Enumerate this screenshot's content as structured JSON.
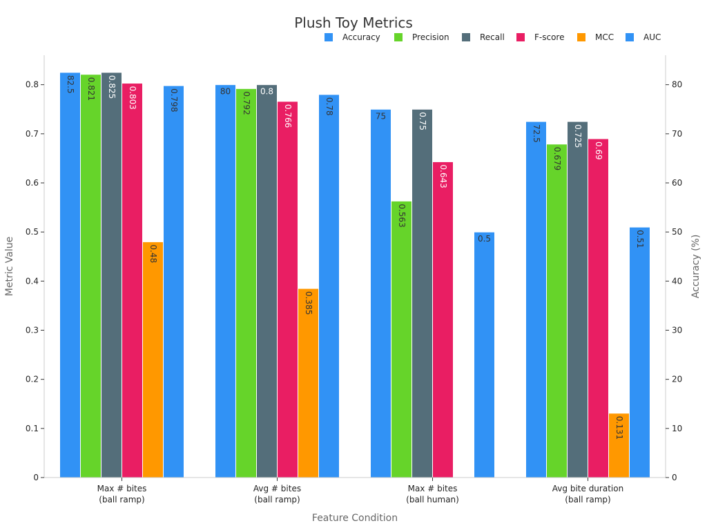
{
  "chart_data": {
    "type": "bar",
    "title": "Plush Toy Metrics",
    "xlabel": "Feature Condition",
    "ylabel": "Metric Value",
    "y2label": "Accuracy (%)",
    "categories": [
      [
        "Max # bites",
        "(ball ramp)"
      ],
      [
        "Avg # bites",
        "(ball ramp)"
      ],
      [
        "Max # bites",
        "(ball human)"
      ],
      [
        "Avg bite duration",
        "(ball ramp)"
      ]
    ],
    "ylim": [
      0,
      0.86
    ],
    "y2lim": [
      0,
      86
    ],
    "yticks": [
      "0",
      "0.1",
      "0.2",
      "0.3",
      "0.4",
      "0.5",
      "0.6",
      "0.7",
      "0.8"
    ],
    "y2ticks": [
      "0",
      "10",
      "20",
      "30",
      "40",
      "50",
      "60",
      "70",
      "80"
    ],
    "legend_position": "top-right",
    "grid": false,
    "series": [
      {
        "name": "Accuracy",
        "axis": "right",
        "color": "#3192f5",
        "label_color": "#333333",
        "values": [
          82.5,
          80,
          75,
          72.5
        ],
        "labels": [
          "82.5",
          "80",
          "75",
          "72.5"
        ],
        "rotated": [
          true,
          false,
          false,
          true
        ]
      },
      {
        "name": "Precision",
        "axis": "left",
        "color": "#66d42a",
        "label_color": "#333333",
        "values": [
          0.821,
          0.792,
          0.563,
          0.679
        ],
        "labels": [
          "0.821",
          "0.792",
          "0.563",
          "0.679"
        ],
        "rotated": [
          true,
          true,
          true,
          true
        ]
      },
      {
        "name": "Recall",
        "axis": "left",
        "color": "#546e7a",
        "label_color": "#ffffff",
        "values": [
          0.825,
          0.8,
          0.75,
          0.725
        ],
        "labels": [
          "0.825",
          "0.8",
          "0.75",
          "0.725"
        ],
        "rotated": [
          true,
          false,
          true,
          true
        ]
      },
      {
        "name": "F-score",
        "axis": "left",
        "color": "#e91e63",
        "label_color": "#ffffff",
        "values": [
          0.803,
          0.766,
          0.643,
          0.69
        ],
        "labels": [
          "0.803",
          "0.766",
          "0.643",
          "0.69"
        ],
        "rotated": [
          true,
          true,
          true,
          true
        ]
      },
      {
        "name": "MCC",
        "axis": "left",
        "color": "#ff9800",
        "label_color": "#333333",
        "values": [
          0.48,
          0.385,
          null,
          0.131
        ],
        "labels": [
          "0.48",
          "0.385",
          "",
          "0.131"
        ],
        "rotated": [
          true,
          true,
          true,
          true
        ]
      },
      {
        "name": "AUC",
        "axis": "left",
        "color": "#3192f5",
        "label_color": "#333333",
        "values": [
          0.798,
          0.78,
          0.5,
          0.51
        ],
        "labels": [
          "0.798",
          "0.78",
          "0.5",
          "0.51"
        ],
        "rotated": [
          true,
          true,
          false,
          true
        ]
      }
    ]
  }
}
